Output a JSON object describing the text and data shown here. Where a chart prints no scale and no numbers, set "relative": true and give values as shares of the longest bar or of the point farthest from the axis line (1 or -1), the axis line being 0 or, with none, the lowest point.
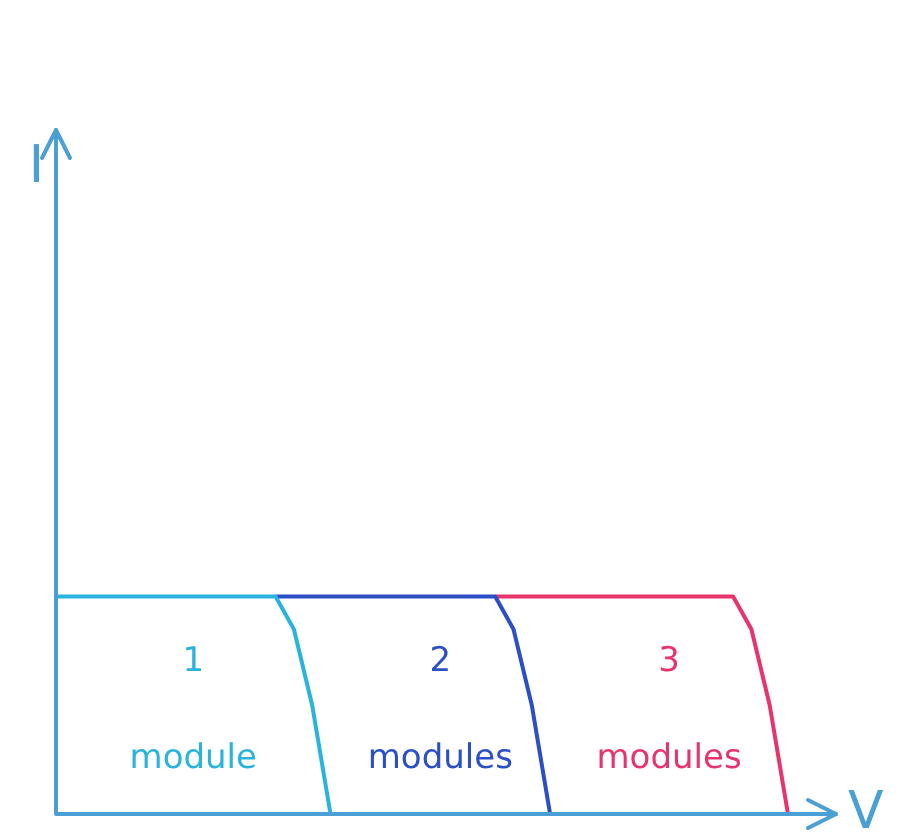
{
  "chart_data": {
    "type": "line",
    "relative": true,
    "xlabel": "V",
    "annotations": [
      "I"
    ],
    "tick_labels": false,
    "categories": [
      null,
      null,
      null,
      null,
      null,
      null,
      null,
      null,
      null,
      null,
      null,
      null,
      null,
      null,
      null,
      null,
      null,
      null,
      null,
      null,
      null,
      null,
      null,
      null,
      null,
      null,
      null,
      null,
      null,
      null,
      null,
      null,
      null,
      null,
      null,
      null,
      null,
      null,
      null,
      null,
      null
    ],
    "series": [
      {
        "name": "1 module",
        "color": "#29b3dd",
        "values": [
          1,
          1,
          1,
          1,
          1,
          1,
          1,
          1,
          1,
          1,
          1,
          1,
          1,
          0.85,
          0.5,
          0,
          null,
          null,
          null,
          null,
          null,
          null,
          null,
          null,
          null,
          null,
          null,
          null,
          null,
          null,
          null,
          null,
          null,
          null,
          null,
          null,
          null,
          null,
          null,
          null,
          null
        ]
      },
      {
        "name": "2 modules",
        "color": "#2a4fc6",
        "values": [
          null,
          null,
          null,
          null,
          null,
          null,
          null,
          null,
          null,
          null,
          null,
          null,
          1,
          1,
          1,
          1,
          1,
          1,
          1,
          1,
          1,
          1,
          1,
          1,
          1,
          0.85,
          0.5,
          0,
          null,
          null,
          null,
          null,
          null,
          null,
          null,
          null,
          null,
          null,
          null,
          null,
          null
        ]
      },
      {
        "name": "3 modules",
        "color": "#e8346c",
        "values": [
          null,
          null,
          null,
          null,
          null,
          null,
          null,
          null,
          null,
          null,
          null,
          null,
          null,
          null,
          null,
          null,
          null,
          null,
          null,
          null,
          null,
          null,
          null,
          null,
          1,
          1,
          1,
          1,
          1,
          1,
          1,
          1,
          1,
          1,
          1,
          1,
          1,
          1,
          0.85,
          0.5,
          0
        ]
      }
    ]
  }
}
